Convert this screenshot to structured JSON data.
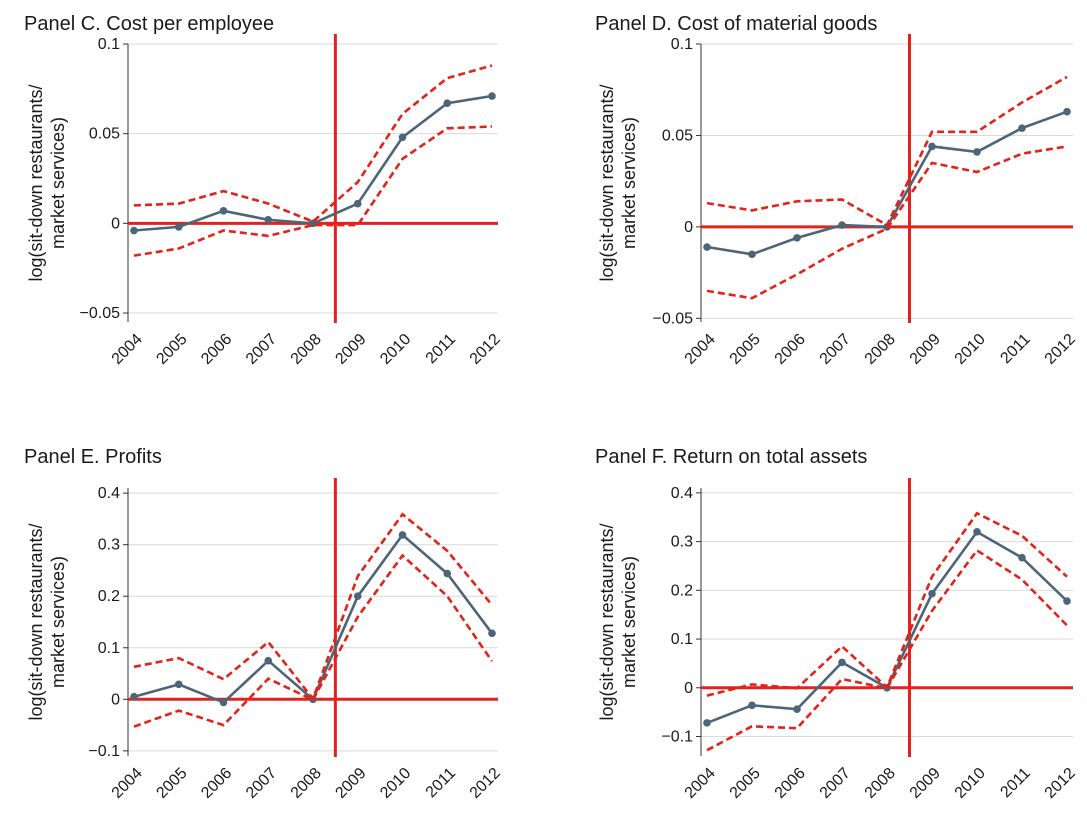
{
  "style": {
    "estimate_color": "#4d6578",
    "ci_color": "#e2231a",
    "reference_line_color": "#e2231a",
    "grid_color": "#d9d9d9"
  },
  "chart_data": [
    {
      "type": "line",
      "title": "Panel C. Cost per employee",
      "ylabel": "log(sit-down restaurants/ market services)",
      "categories": [
        "2004",
        "2005",
        "2006",
        "2007",
        "2008",
        "2009",
        "2010",
        "2011",
        "2012"
      ],
      "ylim": [
        -0.055,
        0.1
      ],
      "yticks": [
        0.1,
        0.05,
        0,
        -0.05
      ],
      "ytick_labels": [
        "0.1",
        "0.05",
        "0",
        "−0.05"
      ],
      "reference_x": 2008.5,
      "reference_y": 0,
      "grid": true,
      "series": [
        {
          "role": "estimate",
          "style": "solid-markers",
          "values": [
            -0.004,
            -0.002,
            0.007,
            0.002,
            0.0,
            0.011,
            0.048,
            0.067,
            0.071
          ]
        },
        {
          "role": "ci-upper",
          "style": "dashed",
          "values": [
            0.01,
            0.011,
            0.018,
            0.011,
            0.001,
            0.023,
            0.061,
            0.081,
            0.088
          ]
        },
        {
          "role": "ci-lower",
          "style": "dashed",
          "values": [
            -0.018,
            -0.014,
            -0.004,
            -0.007,
            -0.001,
            -0.001,
            0.036,
            0.053,
            0.054
          ]
        }
      ]
    },
    {
      "type": "line",
      "title": "Panel D. Cost of material goods",
      "ylabel": "log(sit-down restaurants/ market services)",
      "categories": [
        "2004",
        "2005",
        "2006",
        "2007",
        "2008",
        "2009",
        "2010",
        "2011",
        "2012"
      ],
      "ylim": [
        -0.052,
        0.1
      ],
      "yticks": [
        0.1,
        0.05,
        0,
        -0.05
      ],
      "ytick_labels": [
        "0.1",
        "0.05",
        "0",
        "−0.05"
      ],
      "reference_x": 2008.5,
      "reference_y": 0,
      "grid": true,
      "series": [
        {
          "role": "estimate",
          "style": "solid-markers",
          "values": [
            -0.011,
            -0.015,
            -0.006,
            0.001,
            0.0,
            0.044,
            0.041,
            0.054,
            0.063
          ]
        },
        {
          "role": "ci-upper",
          "style": "dashed",
          "values": [
            0.013,
            0.009,
            0.014,
            0.015,
            0.001,
            0.052,
            0.052,
            0.068,
            0.082
          ]
        },
        {
          "role": "ci-lower",
          "style": "dashed",
          "values": [
            -0.035,
            -0.039,
            -0.026,
            -0.012,
            -0.001,
            0.035,
            0.03,
            0.04,
            0.044
          ]
        }
      ]
    },
    {
      "type": "line",
      "title": "Panel E. Profits",
      "ylabel": "log(sit-down restaurants/ market services)",
      "categories": [
        "2004",
        "2005",
        "2006",
        "2007",
        "2008",
        "2009",
        "2010",
        "2011",
        "2012"
      ],
      "ylim": [
        -0.11,
        0.41
      ],
      "yticks": [
        0.4,
        0.3,
        0.2,
        0.1,
        0,
        -0.1
      ],
      "ytick_labels": [
        "0.4",
        "0.3",
        "0.2",
        "0.1",
        "0",
        "−0.1"
      ],
      "reference_x": 2008.5,
      "reference_y": 0,
      "grid": true,
      "series": [
        {
          "role": "estimate",
          "style": "solid-markers",
          "values": [
            0.005,
            0.029,
            -0.006,
            0.075,
            0.0,
            0.2,
            0.319,
            0.244,
            0.128
          ]
        },
        {
          "role": "ci-upper",
          "style": "dashed",
          "values": [
            0.063,
            0.08,
            0.039,
            0.111,
            0.001,
            0.239,
            0.359,
            0.288,
            0.183
          ]
        },
        {
          "role": "ci-lower",
          "style": "dashed",
          "values": [
            -0.053,
            -0.022,
            -0.05,
            0.04,
            -0.001,
            0.16,
            0.279,
            0.2,
            0.074
          ]
        }
      ]
    },
    {
      "type": "line",
      "title": "Panel F. Return on total assets",
      "ylabel": "log(sit-down restaurants/ market services)",
      "categories": [
        "2004",
        "2005",
        "2006",
        "2007",
        "2008",
        "2009",
        "2010",
        "2011",
        "2012"
      ],
      "ylim": [
        -0.14,
        0.41
      ],
      "yticks": [
        0.4,
        0.3,
        0.2,
        0.1,
        0,
        -0.1
      ],
      "ytick_labels": [
        "0.4",
        "0.3",
        "0.2",
        "0.1",
        "0",
        "−0.1"
      ],
      "reference_x": 2008.5,
      "reference_y": 0,
      "grid": true,
      "series": [
        {
          "role": "estimate",
          "style": "solid-markers",
          "values": [
            -0.072,
            -0.036,
            -0.044,
            0.052,
            0.0,
            0.193,
            0.32,
            0.267,
            0.178
          ]
        },
        {
          "role": "ci-upper",
          "style": "dashed",
          "values": [
            -0.016,
            0.007,
            -0.001,
            0.085,
            0.001,
            0.228,
            0.358,
            0.312,
            0.228
          ]
        },
        {
          "role": "ci-lower",
          "style": "dashed",
          "values": [
            -0.128,
            -0.079,
            -0.083,
            0.018,
            -0.001,
            0.158,
            0.282,
            0.222,
            0.128
          ]
        }
      ]
    }
  ]
}
